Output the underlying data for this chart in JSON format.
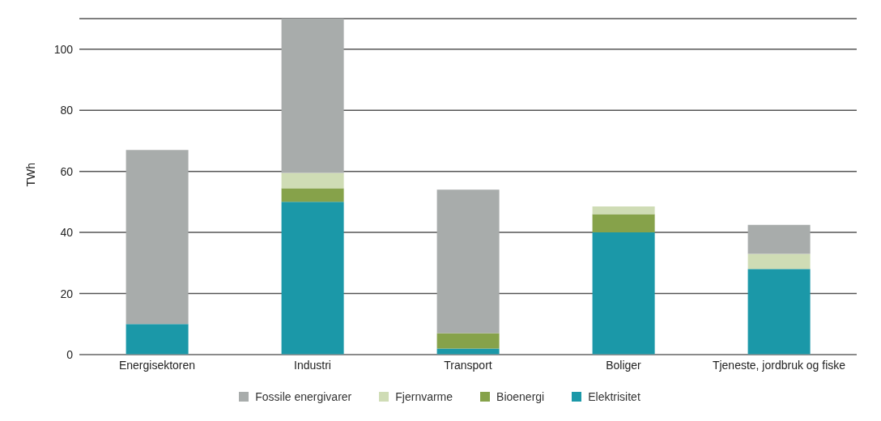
{
  "chart_data": {
    "type": "bar",
    "ylabel": "TWh",
    "stacked": true,
    "categories": [
      "Energisektoren",
      "Industri",
      "Transport",
      "Boliger",
      "Tjeneste, jordbruk og fiske"
    ],
    "series": [
      {
        "name": "Elektrisitet",
        "color": "#1b98a8",
        "values": [
          10,
          50,
          2,
          40,
          28
        ]
      },
      {
        "name": "Bioenergi",
        "color": "#86a24a",
        "values": [
          0,
          4.5,
          5,
          6,
          0
        ]
      },
      {
        "name": "Fjernvarme",
        "color": "#cfdcb5",
        "values": [
          0,
          5,
          0,
          2.5,
          5
        ]
      },
      {
        "name": "Fossile energivarer",
        "color": "#a8acab",
        "values": [
          57,
          50.5,
          47,
          0,
          9.5
        ]
      }
    ],
    "ylim": [
      0,
      110
    ],
    "yticks": [
      0,
      20,
      40,
      60,
      80,
      100
    ],
    "grid": "y",
    "legend": "bottom"
  }
}
